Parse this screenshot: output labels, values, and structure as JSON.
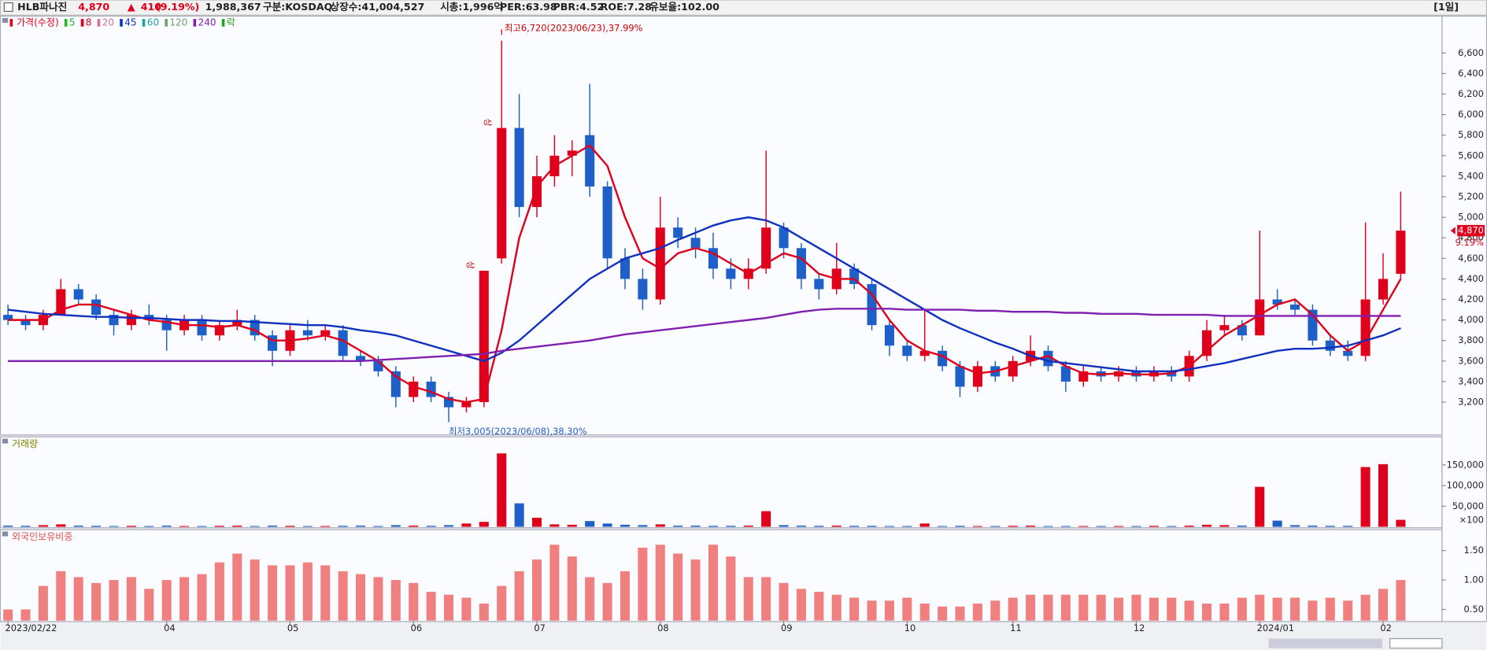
{
  "header": {
    "name": "HLB파나진",
    "price": "4,870",
    "arrow": "▲",
    "change": "410",
    "change_pct": "(9.19%)",
    "volume": "1,988,367",
    "market": "구분:KOSDAQ",
    "shares": "상장수:41,004,527",
    "market_cap": "시총:1,996억",
    "per": "PER:63.98",
    "pbr": "PBR:4.52",
    "roe": "ROE:7.28",
    "reserve": "유보율:102.00",
    "period": "[1일]"
  },
  "chart_data": {
    "type": "candlestick",
    "price_label": "가격(수정)",
    "rights_label": "락",
    "up_color": "#e0001b",
    "down_color": "#1f5fc8",
    "categories": [
      "2023/02/22",
      null,
      null,
      null,
      null,
      null,
      null,
      null,
      null,
      "04",
      null,
      null,
      null,
      null,
      null,
      null,
      "05",
      null,
      null,
      null,
      null,
      null,
      null,
      "06",
      null,
      null,
      null,
      null,
      null,
      null,
      "07",
      null,
      null,
      null,
      null,
      null,
      null,
      "08",
      null,
      null,
      null,
      null,
      null,
      null,
      "09",
      null,
      null,
      null,
      null,
      null,
      null,
      "10",
      null,
      null,
      null,
      null,
      null,
      "11",
      null,
      null,
      null,
      null,
      null,
      null,
      "12",
      null,
      null,
      null,
      null,
      null,
      null,
      "2024/01",
      null,
      null,
      null,
      null,
      null,
      null,
      "02",
      null
    ],
    "open": [
      4050,
      4000,
      3950,
      4050,
      4300,
      4200,
      4050,
      3950,
      4050,
      4000,
      3900,
      4000,
      3850,
      3950,
      4000,
      3850,
      3700,
      3900,
      3850,
      3900,
      3650,
      3600,
      3500,
      3250,
      3400,
      3250,
      3150,
      3200,
      4600,
      5870,
      5100,
      5400,
      5600,
      5800,
      5300,
      4600,
      4400,
      4200,
      4900,
      4800,
      4700,
      4500,
      4400,
      4500,
      4900,
      4700,
      4400,
      4300,
      4500,
      4350,
      3950,
      3750,
      3650,
      3700,
      3550,
      3350,
      3550,
      3450,
      3600,
      3700,
      3550,
      3400,
      3500,
      3450,
      3500,
      3450,
      3500,
      3450,
      3650,
      3900,
      3950,
      3850,
      4200,
      4150,
      4100,
      3800,
      3700,
      3650,
      4200,
      4450
    ],
    "high": [
      4150,
      4050,
      4100,
      4400,
      4350,
      4250,
      4100,
      4100,
      4150,
      4050,
      4050,
      4050,
      4000,
      4100,
      4050,
      3900,
      3950,
      4000,
      3950,
      3950,
      3700,
      3650,
      3550,
      3450,
      3450,
      3300,
      3250,
      4480,
      6720,
      6200,
      5600,
      5800,
      5750,
      6300,
      5350,
      4700,
      4500,
      5200,
      5000,
      4900,
      4850,
      4600,
      4600,
      5650,
      4950,
      4750,
      4450,
      4750,
      4550,
      4400,
      4000,
      3800,
      4100,
      3750,
      3600,
      3600,
      3600,
      3650,
      3850,
      3750,
      3600,
      3550,
      3550,
      3550,
      3550,
      3550,
      3550,
      3700,
      4000,
      4050,
      4000,
      4870,
      4300,
      4200,
      4150,
      3850,
      3800,
      4950,
      4650,
      5250
    ],
    "low": [
      3950,
      3900,
      3900,
      4050,
      4150,
      4000,
      3850,
      3900,
      3950,
      3700,
      3850,
      3800,
      3800,
      3900,
      3800,
      3550,
      3650,
      3800,
      3800,
      3600,
      3550,
      3450,
      3150,
      3200,
      3200,
      3005,
      3100,
      3150,
      4550,
      5000,
      5000,
      5300,
      5400,
      5200,
      4500,
      4300,
      4100,
      4150,
      4700,
      4600,
      4400,
      4300,
      4300,
      4450,
      4600,
      4300,
      4200,
      4250,
      4300,
      3900,
      3650,
      3600,
      3600,
      3500,
      3250,
      3300,
      3400,
      3400,
      3550,
      3500,
      3300,
      3350,
      3400,
      3400,
      3400,
      3400,
      3400,
      3400,
      3600,
      3850,
      3800,
      3850,
      4100,
      4050,
      3750,
      3650,
      3600,
      3600,
      4150,
      4400
    ],
    "close": [
      4000,
      3950,
      4050,
      4300,
      4200,
      4050,
      3950,
      4050,
      4000,
      3900,
      4000,
      3850,
      3950,
      4000,
      3850,
      3700,
      3900,
      3850,
      3900,
      3650,
      3600,
      3500,
      3250,
      3400,
      3250,
      3150,
      3200,
      4480,
      5870,
      5100,
      5400,
      5600,
      5650,
      5300,
      4600,
      4400,
      4200,
      4900,
      4800,
      4700,
      4500,
      4400,
      4500,
      4900,
      4700,
      4400,
      4300,
      4500,
      4350,
      3950,
      3750,
      3650,
      3700,
      3550,
      3350,
      3550,
      3450,
      3600,
      3700,
      3550,
      3400,
      3500,
      3450,
      3500,
      3450,
      3500,
      3450,
      3650,
      3900,
      3950,
      3850,
      4200,
      4150,
      4100,
      3800,
      3700,
      3650,
      4200,
      4400,
      4870
    ],
    "ylim": [
      2890,
      6950
    ],
    "yticks": [
      {
        "value": 3200,
        "label": "3,200"
      },
      {
        "value": 3400,
        "label": "3,400"
      },
      {
        "value": 3600,
        "label": "3,600"
      },
      {
        "value": 3800,
        "label": "3,800"
      },
      {
        "value": 4000,
        "label": "4,000"
      },
      {
        "value": 4200,
        "label": "4,200"
      },
      {
        "value": 4400,
        "label": "4,400"
      },
      {
        "value": 4600,
        "label": "4,600"
      },
      {
        "value": 4800,
        "label": "4,800"
      },
      {
        "value": 5000,
        "label": "5,000"
      },
      {
        "value": 5200,
        "label": "5,200"
      },
      {
        "value": 5400,
        "label": "5,400"
      },
      {
        "value": 5600,
        "label": "5,600"
      },
      {
        "value": 5800,
        "label": "5,800"
      },
      {
        "value": 6000,
        "label": "6,000"
      },
      {
        "value": 6200,
        "label": "6,200"
      },
      {
        "value": 6400,
        "label": "6,400"
      },
      {
        "value": 6600,
        "label": "6,600"
      }
    ],
    "moving_averages": [
      {
        "name": "5",
        "color": "#22b522"
      },
      {
        "name": "8",
        "color": "#e0001b",
        "values": [
          4000,
          4000,
          4000,
          4100,
          4150,
          4150,
          4100,
          4050,
          4000,
          3980,
          3950,
          3950,
          3930,
          3950,
          3900,
          3800,
          3800,
          3820,
          3850,
          3800,
          3700,
          3600,
          3450,
          3350,
          3300,
          3230,
          3200,
          3230,
          3900,
          4800,
          5300,
          5500,
          5600,
          5700,
          5500,
          5000,
          4600,
          4500,
          4650,
          4700,
          4650,
          4550,
          4450,
          4550,
          4650,
          4600,
          4450,
          4400,
          4400,
          4250,
          4000,
          3800,
          3700,
          3650,
          3550,
          3480,
          3500,
          3550,
          3600,
          3650,
          3550,
          3480,
          3470,
          3480,
          3470,
          3470,
          3480,
          3550,
          3700,
          3850,
          3950,
          4050,
          4150,
          4200,
          4050,
          3850,
          3700,
          3800,
          4100,
          4400
        ]
      },
      {
        "name": "20",
        "color": "#d070a0"
      },
      {
        "name": "45",
        "color": "#1030c0",
        "values": [
          4100,
          4080,
          4060,
          4050,
          4040,
          4030,
          4030,
          4020,
          4020,
          4010,
          4000,
          4000,
          3990,
          3990,
          3980,
          3970,
          3960,
          3950,
          3950,
          3930,
          3900,
          3880,
          3850,
          3800,
          3750,
          3700,
          3650,
          3600,
          3680,
          3800,
          3950,
          4100,
          4250,
          4400,
          4500,
          4600,
          4650,
          4700,
          4780,
          4850,
          4920,
          4970,
          5000,
          4970,
          4900,
          4800,
          4700,
          4600,
          4500,
          4400,
          4300,
          4200,
          4100,
          4000,
          3920,
          3850,
          3780,
          3720,
          3650,
          3600,
          3580,
          3560,
          3540,
          3520,
          3500,
          3500,
          3500,
          3520,
          3550,
          3580,
          3620,
          3660,
          3700,
          3720,
          3720,
          3730,
          3750,
          3800,
          3850,
          3920
        ]
      },
      {
        "name": "60",
        "color": "#20a0a0"
      },
      {
        "name": "120",
        "color": "#70a070"
      },
      {
        "name": "240",
        "color": "#8020b0",
        "values": [
          3600,
          3600,
          3600,
          3600,
          3600,
          3600,
          3600,
          3600,
          3600,
          3600,
          3600,
          3600,
          3600,
          3600,
          3600,
          3600,
          3600,
          3600,
          3600,
          3600,
          3600,
          3610,
          3620,
          3630,
          3640,
          3650,
          3660,
          3670,
          3700,
          3720,
          3740,
          3760,
          3780,
          3800,
          3830,
          3860,
          3880,
          3900,
          3920,
          3940,
          3960,
          3980,
          4000,
          4020,
          4050,
          4080,
          4100,
          4110,
          4110,
          4110,
          4110,
          4100,
          4100,
          4100,
          4100,
          4090,
          4090,
          4080,
          4080,
          4080,
          4070,
          4070,
          4060,
          4060,
          4060,
          4050,
          4050,
          4050,
          4050,
          4040,
          4040,
          4040,
          4040,
          4040,
          4040,
          4040,
          4040,
          4040,
          4040,
          4040
        ]
      }
    ],
    "annotations": {
      "high": "최고6,720(2023/06/23),37.99%",
      "low": "최저3,005(2023/06/08),38.30%",
      "limit_up": "상"
    },
    "last_price_label": "4,870",
    "last_change_label": "9.19%",
    "volume": {
      "label": "거래량",
      "unit_label": "×100",
      "ylim": [
        0,
        216000
      ],
      "yticks": [
        {
          "value": 50000,
          "label": "50,000"
        },
        {
          "value": 100000,
          "label": "100,000"
        },
        {
          "value": 150000,
          "label": "150,000"
        }
      ],
      "values": [
        3000,
        2500,
        4000,
        6000,
        3000,
        2500,
        2000,
        2500,
        2000,
        3000,
        2000,
        2000,
        2500,
        3000,
        2000,
        3000,
        2500,
        2000,
        2000,
        2500,
        3000,
        2000,
        4000,
        3000,
        2500,
        4000,
        8000,
        12000,
        178000,
        57000,
        22000,
        6000,
        5000,
        14000,
        8000,
        5000,
        4000,
        6000,
        3000,
        3000,
        2500,
        2500,
        3000,
        38000,
        4000,
        3000,
        2500,
        3000,
        2500,
        2500,
        2000,
        2000,
        8000,
        2000,
        2500,
        2000,
        2000,
        2500,
        3000,
        2000,
        2000,
        2000,
        2000,
        2000,
        2000,
        2500,
        2000,
        3000,
        5000,
        4000,
        3000,
        97000,
        15000,
        4000,
        3000,
        2500,
        2500,
        145000,
        152000,
        17000
      ]
    },
    "foreign": {
      "label": "외국인보유비중",
      "color": "#f08080",
      "ylim": [
        0.31,
        1.84
      ],
      "yticks": [
        {
          "value": 0.5,
          "label": "0.50"
        },
        {
          "value": 1,
          "label": "1.00"
        },
        {
          "value": 1.5,
          "label": "1.50"
        }
      ],
      "values": [
        0.5,
        0.5,
        0.9,
        1.15,
        1.05,
        0.95,
        1.0,
        1.05,
        0.85,
        1.0,
        1.05,
        1.1,
        1.3,
        1.45,
        1.35,
        1.25,
        1.25,
        1.3,
        1.25,
        1.15,
        1.1,
        1.05,
        1.0,
        0.95,
        0.8,
        0.75,
        0.7,
        0.6,
        0.9,
        1.15,
        1.35,
        1.6,
        1.4,
        1.05,
        0.95,
        1.15,
        1.55,
        1.6,
        1.45,
        1.35,
        1.6,
        1.4,
        1.05,
        1.05,
        0.95,
        0.85,
        0.8,
        0.75,
        0.7,
        0.65,
        0.65,
        0.7,
        0.6,
        0.55,
        0.55,
        0.6,
        0.65,
        0.7,
        0.75,
        0.75,
        0.75,
        0.75,
        0.75,
        0.7,
        0.75,
        0.7,
        0.7,
        0.65,
        0.6,
        0.6,
        0.7,
        0.75,
        0.7,
        0.7,
        0.65,
        0.7,
        0.65,
        0.75,
        0.85,
        1.0
      ]
    }
  }
}
